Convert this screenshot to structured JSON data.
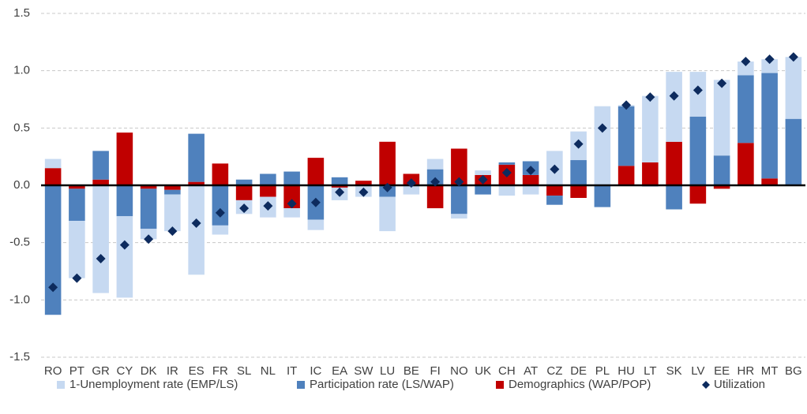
{
  "chart_data": {
    "type": "bar",
    "stacked": true,
    "categories": [
      "RO",
      "PT",
      "GR",
      "CY",
      "DK",
      "IR",
      "ES",
      "FR",
      "SL",
      "NL",
      "IT",
      "IC",
      "EA",
      "SW",
      "LU",
      "BE",
      "FI",
      "NO",
      "UK",
      "CH",
      "AT",
      "CZ",
      "DE",
      "PL",
      "HU",
      "LT",
      "SK",
      "LV",
      "EE",
      "HR",
      "MT",
      "BG"
    ],
    "series": [
      {
        "name": "1-Unemployment rate (EMP/LS)",
        "color": "#c6d9f1",
        "values": [
          0.08,
          -0.5,
          -0.94,
          -0.71,
          -0.09,
          -0.32,
          -0.78,
          -0.08,
          -0.12,
          -0.18,
          -0.08,
          -0.09,
          -0.11,
          -0.1,
          -0.3,
          -0.08,
          0.09,
          -0.04,
          0.04,
          -0.09,
          -0.08,
          0.3,
          0.25,
          0.69,
          0.01,
          0.58,
          0.61,
          0.39,
          0.66,
          0.12,
          0.12,
          0.54
        ]
      },
      {
        "name": "Participation rate (LS/WAP)",
        "color": "#4f81bd",
        "values": [
          -1.13,
          -0.28,
          0.25,
          -0.27,
          -0.35,
          -0.04,
          0.42,
          -0.35,
          0.05,
          0.1,
          0.12,
          -0.3,
          0.07,
          0.0,
          -0.1,
          0.0,
          0.14,
          -0.25,
          -0.08,
          0.02,
          0.12,
          -0.08,
          0.22,
          -0.19,
          0.52,
          -0.01,
          -0.21,
          0.6,
          0.26,
          0.59,
          0.92,
          0.58
        ]
      },
      {
        "name": "Demographics (WAP/POP)",
        "color": "#c00000",
        "values": [
          0.15,
          -0.03,
          0.05,
          0.46,
          -0.03,
          -0.04,
          0.03,
          0.19,
          -0.13,
          -0.1,
          -0.2,
          0.24,
          -0.02,
          0.04,
          0.38,
          0.1,
          -0.2,
          0.32,
          0.09,
          0.18,
          0.09,
          -0.09,
          -0.11,
          0.0,
          0.17,
          0.2,
          0.38,
          -0.16,
          -0.03,
          0.37,
          0.06,
          0.0
        ]
      },
      {
        "name": "Utilization",
        "color": "#0d2b5e",
        "type": "scatter",
        "marker": "diamond",
        "values": [
          -0.89,
          -0.81,
          -0.64,
          -0.52,
          -0.47,
          -0.4,
          -0.33,
          -0.24,
          -0.2,
          -0.18,
          -0.16,
          -0.15,
          -0.06,
          -0.06,
          -0.02,
          0.02,
          0.03,
          0.03,
          0.05,
          0.11,
          0.13,
          0.14,
          0.36,
          0.5,
          0.7,
          0.77,
          0.78,
          0.83,
          0.89,
          1.08,
          1.1,
          1.12
        ]
      }
    ],
    "ylim": [
      -1.5,
      1.5
    ],
    "yticks": [
      -1.5,
      {
        "value": -1,
        "label": "-1.0"
      },
      -0.5,
      {
        "value": 0,
        "label": "0.0"
      },
      0.5,
      {
        "value": 1,
        "label": "1.0"
      },
      1.5
    ],
    "grid": true,
    "legend": "bottom"
  }
}
